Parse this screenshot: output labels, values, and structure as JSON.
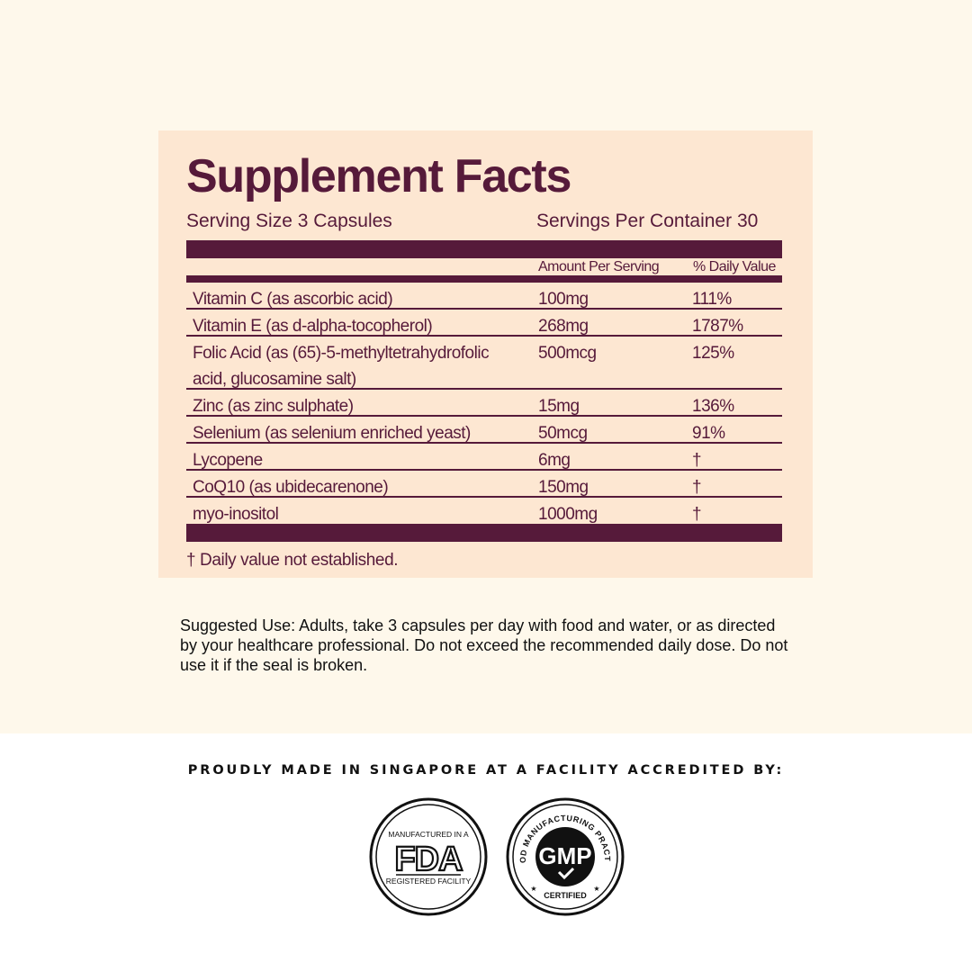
{
  "facts": {
    "title": "Supplement Facts",
    "serving_size": "Serving Size 3 Capsules",
    "servings_per_container": "Servings Per Container 30",
    "col_amount": "Amount Per Serving",
    "col_dv": "% Daily Value",
    "rows": [
      {
        "name": "Vitamin C (as ascorbic acid)",
        "amount": "100mg",
        "dv": "111%"
      },
      {
        "name": "Vitamin E (as d-alpha-tocopherol)",
        "amount": "268mg",
        "dv": "1787%"
      },
      {
        "name": "Folic Acid (as (65)-5-methyltetrahydrofolic acid, glucosamine salt)",
        "amount": "500mcg",
        "dv": "125%"
      },
      {
        "name": "Zinc (as zinc sulphate)",
        "amount": "15mg",
        "dv": "136%"
      },
      {
        "name": "Selenium (as selenium enriched yeast)",
        "amount": "50mcg",
        "dv": "91%"
      },
      {
        "name": "Lycopene",
        "amount": "6mg",
        "dv": "†"
      },
      {
        "name": "CoQ10 (as ubidecarenone)",
        "amount": "150mg",
        "dv": "†"
      },
      {
        "name": "myo-inositol",
        "amount": "1000mg",
        "dv": "†"
      }
    ],
    "footnote": "† Daily value not established."
  },
  "suggested_use": "Suggested Use: Adults, take 3 capsules per day with food and water, or as directed by your healthcare professional. Do not exceed the recommended daily dose. Do not use it if the seal is broken.",
  "accreditation": {
    "heading": "PROUDLY MADE IN SINGAPORE AT A FACILITY ACCREDITED BY:",
    "fda": {
      "top": "MANUFACTURED IN A",
      "logo": "FDA",
      "bottom": "REGISTERED FACILITY",
      "icon": "fda-seal-icon"
    },
    "gmp": {
      "arc": "GOOD MANUFACTURING PRACTICE",
      "logo": "GMP",
      "bottom": "CERTIFIED",
      "icon": "gmp-seal-icon"
    }
  },
  "colors": {
    "page_top": "#fef8eb",
    "panel": "#fde7d2",
    "accent": "#561a3a",
    "page_bottom": "#ffffff"
  }
}
